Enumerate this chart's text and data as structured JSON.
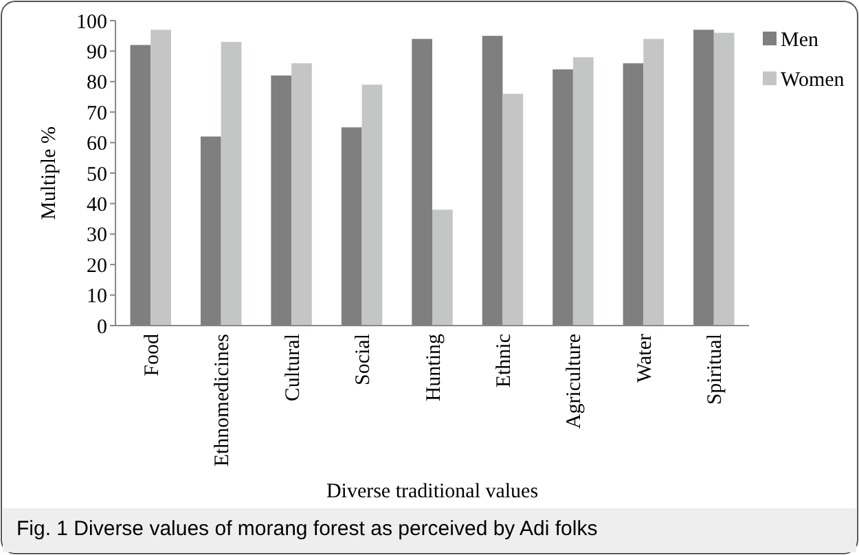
{
  "chart_data": {
    "type": "bar",
    "xlabel": "Diverse traditional values",
    "ylabel": "Multiple %",
    "annotations": [
      "Fig. 1 Diverse values of morang forest as perceived by Adi folks"
    ],
    "categories": [
      "Food",
      "Ethnomedicines",
      "Cultural",
      "Social",
      "Hunting",
      "Ethnic",
      "Agriculture",
      "Water",
      "Spiritual"
    ],
    "series": [
      {
        "name": "Men",
        "color": "#7f7f7f",
        "values": [
          92,
          62,
          82,
          65,
          94,
          95,
          84,
          86,
          97
        ]
      },
      {
        "name": "Women",
        "color": "#c4c6c6",
        "values": [
          97,
          93,
          86,
          79,
          38,
          76,
          88,
          94,
          96
        ]
      }
    ],
    "ylim": [
      0,
      100
    ],
    "yticks": [
      0,
      10,
      20,
      30,
      40,
      50,
      60,
      70,
      80,
      90,
      100
    ],
    "grid": false,
    "legend": "right"
  }
}
